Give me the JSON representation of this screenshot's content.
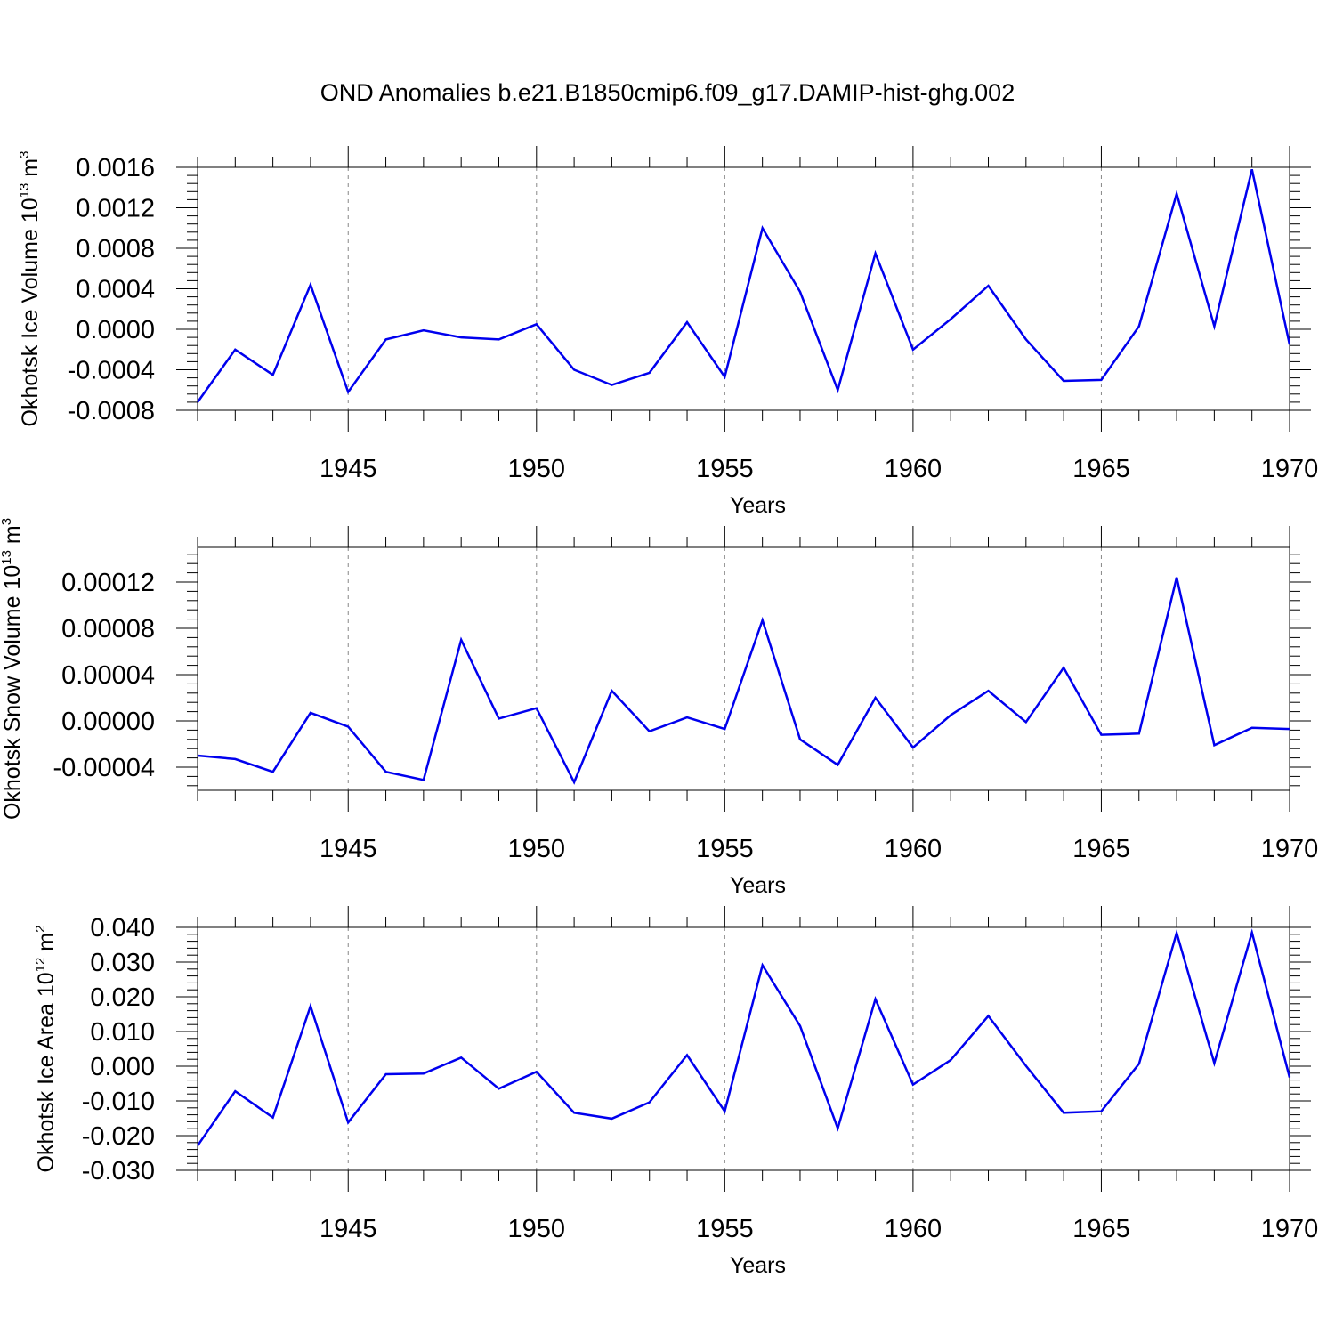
{
  "title": "OND Anomalies b.e21.B1850cmip6.f09_g17.DAMIP-hist-ghg.002",
  "colors": {
    "line": "#0000ee",
    "axis": "#000000",
    "grid": "#888888"
  },
  "chart_data": [
    {
      "type": "line",
      "ylabel": {
        "text": "Okhotsk Ice Volume 10",
        "superscript": "13",
        "unit": " m",
        "unit_superscript": "3"
      },
      "xlabel": "Years",
      "xlim": [
        1941,
        1970
      ],
      "ylim": [
        -0.0008,
        0.0016
      ],
      "xticks": [
        1945,
        1950,
        1955,
        1960,
        1965,
        1970
      ],
      "xtick_labels": [
        "1945",
        "1950",
        "1955",
        "1960",
        "1965",
        "1970"
      ],
      "yticks": [
        -0.0008,
        -0.0004,
        0.0,
        0.0004,
        0.0008,
        0.0012,
        0.0016
      ],
      "ytick_labels": [
        "-0.0008",
        "-0.0004",
        "0.0000",
        "0.0004",
        "0.0008",
        "0.0012",
        "0.0016"
      ],
      "grid": "vertical dashed lines at major x ticks",
      "x": [
        1941,
        1942,
        1943,
        1944,
        1945,
        1946,
        1947,
        1948,
        1949,
        1950,
        1951,
        1952,
        1953,
        1954,
        1955,
        1956,
        1957,
        1958,
        1959,
        1960,
        1961,
        1962,
        1963,
        1964,
        1965,
        1966,
        1967,
        1968,
        1969,
        1970
      ],
      "y": [
        -0.00072,
        -0.0002,
        -0.00045,
        0.00044,
        -0.00062,
        -0.0001,
        -1e-05,
        -8e-05,
        -0.0001,
        5e-05,
        -0.0004,
        -0.00055,
        -0.00043,
        7e-05,
        -0.00047,
        0.001,
        0.00037,
        -0.0006,
        0.00075,
        -0.0002,
        0.0001,
        0.00043,
        -0.0001,
        -0.00051,
        -0.0005,
        3e-05,
        0.00134,
        3e-05,
        0.00158,
        -0.00015
      ]
    },
    {
      "type": "line",
      "ylabel": {
        "text": "Okhotsk Snow Volume 10",
        "superscript": "13",
        "unit": " m",
        "unit_superscript": "3"
      },
      "xlabel": "Years",
      "xlim": [
        1941,
        1970
      ],
      "ylim": [
        -6e-05,
        0.00015
      ],
      "xticks": [
        1945,
        1950,
        1955,
        1960,
        1965,
        1970
      ],
      "xtick_labels": [
        "1945",
        "1950",
        "1955",
        "1960",
        "1965",
        "1970"
      ],
      "yticks": [
        -4e-05,
        0.0,
        4e-05,
        8e-05,
        0.00012
      ],
      "ytick_labels": [
        "-0.00004",
        "0.00000",
        "0.00004",
        "0.00008",
        "0.00012"
      ],
      "grid": "vertical dashed lines at major x ticks",
      "x": [
        1941,
        1942,
        1943,
        1944,
        1945,
        1946,
        1947,
        1948,
        1949,
        1950,
        1951,
        1952,
        1953,
        1954,
        1955,
        1956,
        1957,
        1958,
        1959,
        1960,
        1961,
        1962,
        1963,
        1964,
        1965,
        1966,
        1967,
        1968,
        1969,
        1970
      ],
      "y": [
        -3e-05,
        -3.3e-05,
        -4.4e-05,
        7e-06,
        -5e-06,
        -4.4e-05,
        -5.1e-05,
        7e-05,
        2e-06,
        1.1e-05,
        -5.3e-05,
        2.6e-05,
        -9e-06,
        3e-06,
        -7e-06,
        8.7e-05,
        -1.6e-05,
        -3.8e-05,
        2e-05,
        -2.3e-05,
        5e-06,
        2.6e-05,
        -1e-06,
        4.6e-05,
        -1.2e-05,
        -1.1e-05,
        0.000124,
        -2.1e-05,
        -6e-06,
        -7e-06
      ]
    },
    {
      "type": "line",
      "ylabel": {
        "text": "Okhotsk Ice Area 10",
        "superscript": "12",
        "unit": " m",
        "unit_superscript": "2"
      },
      "xlabel": "Years",
      "xlim": [
        1941,
        1970
      ],
      "ylim": [
        -0.03,
        0.04
      ],
      "xticks": [
        1945,
        1950,
        1955,
        1960,
        1965,
        1970
      ],
      "xtick_labels": [
        "1945",
        "1950",
        "1955",
        "1960",
        "1965",
        "1970"
      ],
      "yticks": [
        -0.03,
        -0.02,
        -0.01,
        0.0,
        0.01,
        0.02,
        0.03,
        0.04
      ],
      "ytick_labels": [
        "-0.030",
        "-0.020",
        "-0.010",
        "0.000",
        "0.010",
        "0.020",
        "0.030",
        "0.040"
      ],
      "grid": "vertical dashed lines at major x ticks",
      "x": [
        1941,
        1942,
        1943,
        1944,
        1945,
        1946,
        1947,
        1948,
        1949,
        1950,
        1951,
        1952,
        1953,
        1954,
        1955,
        1956,
        1957,
        1958,
        1959,
        1960,
        1961,
        1962,
        1963,
        1964,
        1965,
        1966,
        1967,
        1968,
        1969,
        1970
      ],
      "y": [
        -0.0229,
        -0.0072,
        -0.0148,
        0.0173,
        -0.0162,
        -0.0023,
        -0.0021,
        0.0025,
        -0.0065,
        -0.0016,
        -0.0134,
        -0.0151,
        -0.0104,
        0.0032,
        -0.013,
        0.0291,
        0.0116,
        -0.0179,
        0.0193,
        -0.0053,
        0.0018,
        0.0145,
        0.0001,
        -0.0134,
        -0.013,
        0.0007,
        0.0384,
        0.0009,
        0.0385,
        -0.0032
      ]
    }
  ]
}
